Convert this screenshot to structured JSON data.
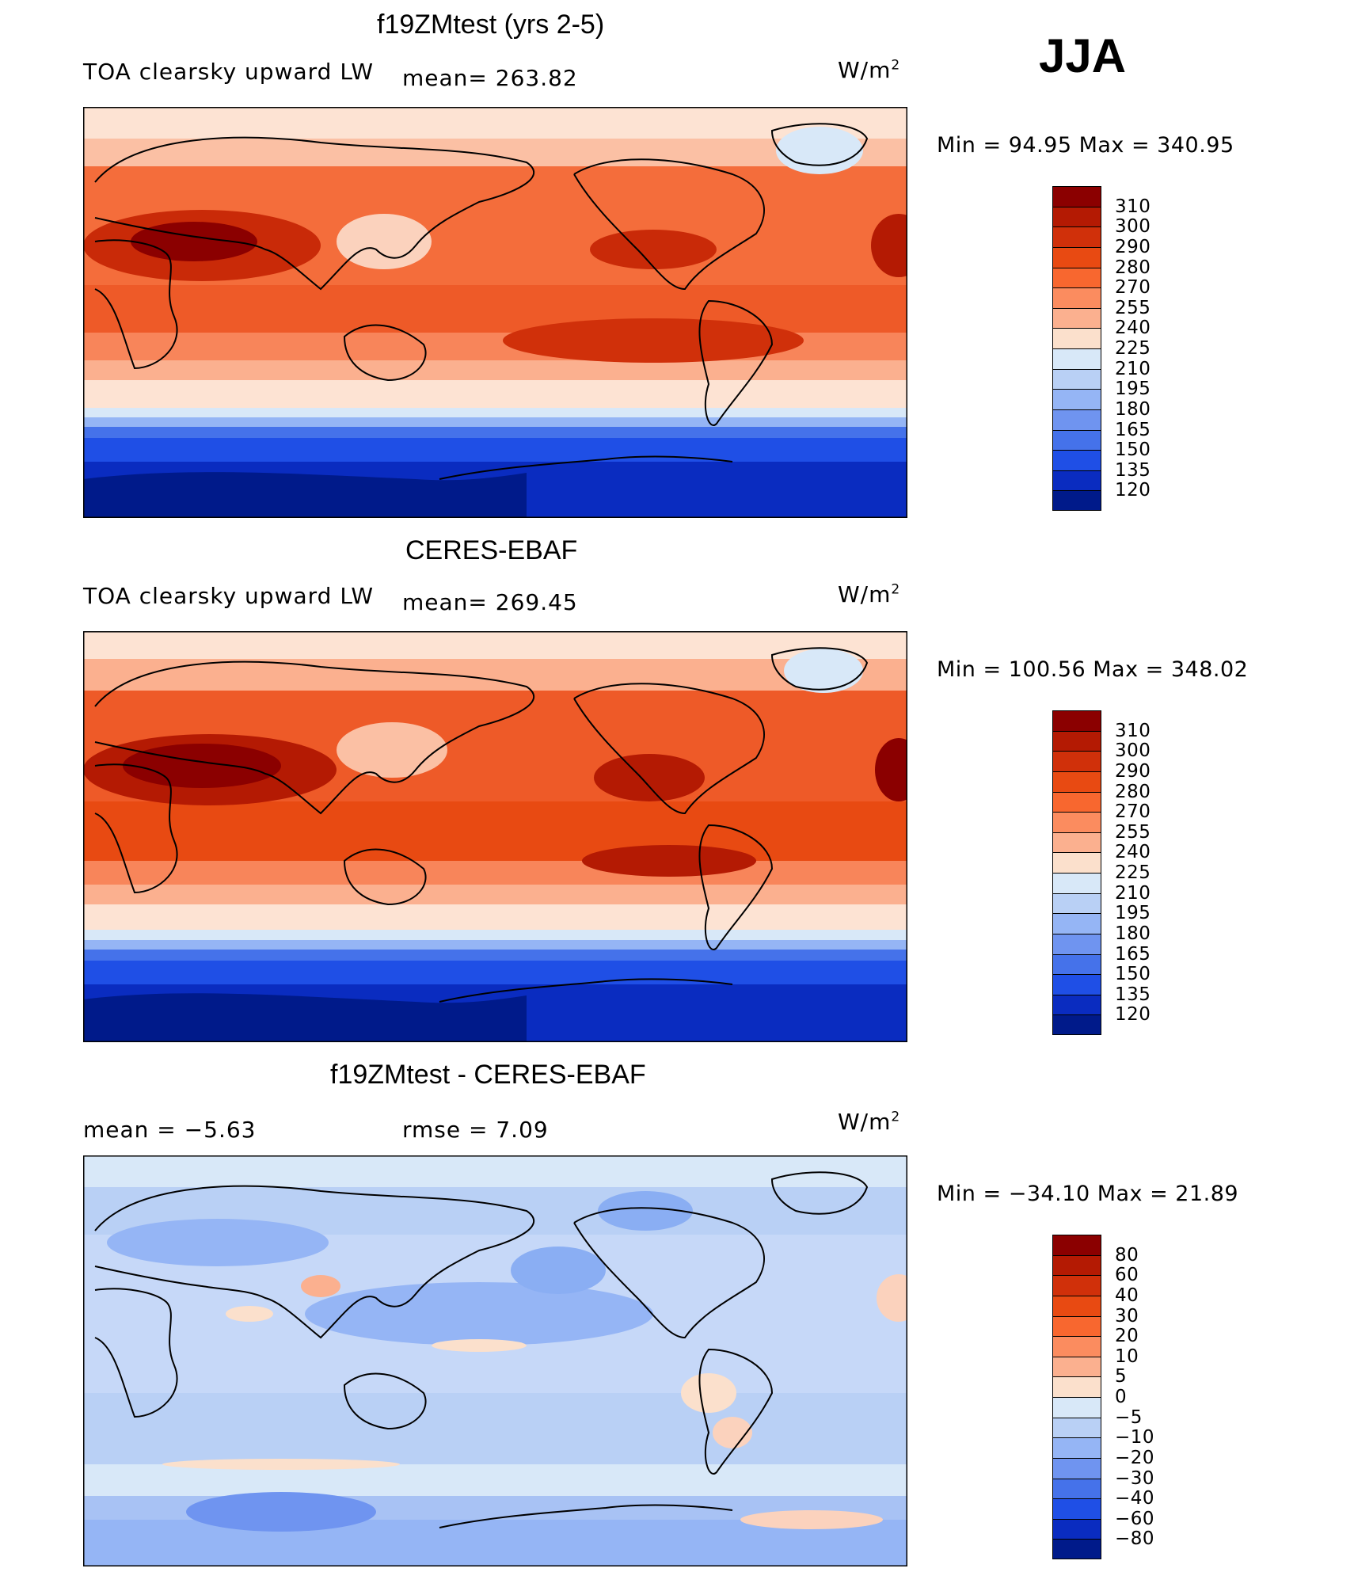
{
  "season": "JJA",
  "panels": [
    {
      "title": "f19ZMtest (yrs 2-5)",
      "variable": "TOA clearsky upward LW",
      "stat1": "mean=  263.82",
      "units_base": "W/m",
      "units_exp": "2",
      "minmax": "Min  =    94.95  Max  =  340.95",
      "colorbar": {
        "labels": [
          "310",
          "300",
          "290",
          "280",
          "270",
          "255",
          "240",
          "225",
          "210",
          "195",
          "180",
          "165",
          "150",
          "135",
          "120"
        ],
        "colors": [
          "#8b0000",
          "#b41a03",
          "#d0300a",
          "#e84a12",
          "#f8672f",
          "#fb8c5f",
          "#fbb08f",
          "#fbe0cc",
          "#d8e8f8",
          "#b9d0f5",
          "#95b5f5",
          "#6f94f0",
          "#4572ea",
          "#1f4fe6",
          "#0a2cc0",
          "#001a8a"
        ]
      }
    },
    {
      "title": "CERES-EBAF",
      "variable": "TOA clearsky upward LW",
      "stat1": "mean=  269.45",
      "units_base": "W/m",
      "units_exp": "2",
      "minmax": "Min  =  100.56  Max  =  348.02",
      "colorbar": {
        "labels": [
          "310",
          "300",
          "290",
          "280",
          "270",
          "255",
          "240",
          "225",
          "210",
          "195",
          "180",
          "165",
          "150",
          "135",
          "120"
        ],
        "colors": [
          "#8b0000",
          "#b41a03",
          "#d0300a",
          "#e84a12",
          "#f8672f",
          "#fb8c5f",
          "#fbb08f",
          "#fbe0cc",
          "#d8e8f8",
          "#b9d0f5",
          "#95b5f5",
          "#6f94f0",
          "#4572ea",
          "#1f4fe6",
          "#0a2cc0",
          "#001a8a"
        ]
      }
    },
    {
      "title": "f19ZMtest - CERES-EBAF",
      "stat1": "mean  =    −5.63",
      "stat2": "rmse  =      7.09",
      "units_base": "W/m",
      "units_exp": "2",
      "minmax": "Min  =  −34.10  Max  =    21.89",
      "colorbar": {
        "labels": [
          "80",
          "60",
          "40",
          "30",
          "20",
          "10",
          "5",
          "0",
          "−5",
          "−10",
          "−20",
          "−30",
          "−40",
          "−60",
          "−80"
        ],
        "colors": [
          "#8b0000",
          "#b41a03",
          "#d0300a",
          "#e84a12",
          "#f8672f",
          "#fb8c5f",
          "#fbb08f",
          "#fbe0cc",
          "#d8e8f8",
          "#b9d0f5",
          "#95b5f5",
          "#6f94f0",
          "#4572ea",
          "#1f4fe6",
          "#0a2cc0",
          "#001a8a"
        ]
      }
    }
  ]
}
